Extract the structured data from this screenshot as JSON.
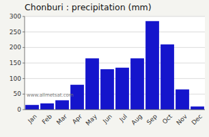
{
  "chart_data": {
    "type": "bar",
    "title": "Chonburi : precipitation (mm)",
    "categories": [
      "Jan",
      "Feb",
      "Mar",
      "Apr",
      "May",
      "Jun",
      "Jul",
      "Aug",
      "Sep",
      "Oct",
      "Nov",
      "Dec"
    ],
    "values": [
      15,
      20,
      30,
      80,
      165,
      130,
      135,
      165,
      285,
      210,
      65,
      10
    ],
    "color": "#1515CC",
    "ylim": [
      0,
      300
    ],
    "yticks": [
      0,
      50,
      100,
      150,
      200,
      250,
      300
    ],
    "grid": true,
    "annotation": "www.allmetsat.com"
  }
}
